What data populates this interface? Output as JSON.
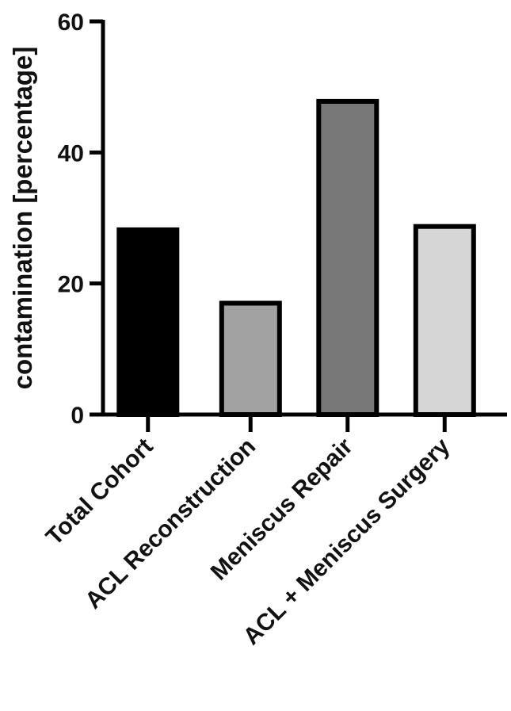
{
  "chart_data": {
    "type": "bar",
    "title": "",
    "xlabel": "",
    "ylabel": "contamination [percentage]",
    "categories": [
      "Total Cohort",
      "ACL Reconstruction",
      "Meniscus Repair",
      "ACL + Meniscus Surgery"
    ],
    "values": [
      28.2,
      17.0,
      47.8,
      28.7
    ],
    "bar_colors": [
      "#000000",
      "#a2a2a2",
      "#787878",
      "#d6d6d6"
    ],
    "ylim": [
      0,
      60
    ],
    "yticks": [
      0,
      20,
      40,
      60
    ],
    "ytick_labels": [
      "0",
      "20",
      "40",
      "60"
    ],
    "grid": false,
    "legend": "none"
  }
}
